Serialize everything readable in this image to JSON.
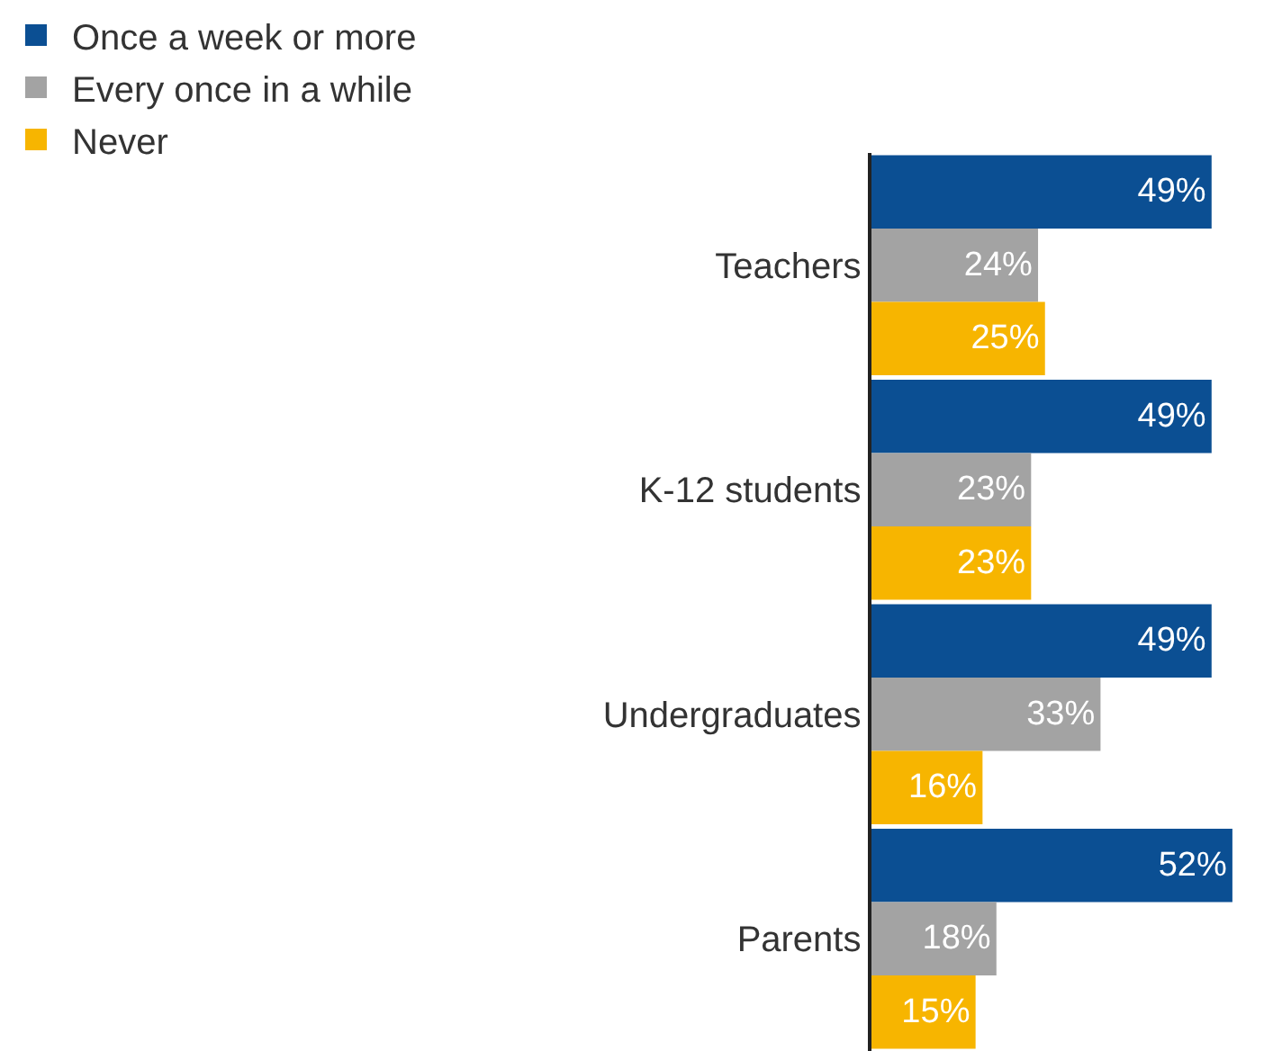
{
  "chart_data": {
    "type": "bar",
    "orientation": "horizontal",
    "categories": [
      "Teachers",
      "K-12 students",
      "Undergraduates",
      "Parents"
    ],
    "series": [
      {
        "name": "Once a week or more",
        "color": "#0b4f93",
        "values": [
          49,
          49,
          49,
          52
        ],
        "value_labels": [
          "49%",
          "49%",
          "49%",
          "52%"
        ]
      },
      {
        "name": "Every once in a while",
        "color": "#a3a3a3",
        "values": [
          24,
          23,
          33,
          18
        ],
        "value_labels": [
          "24%",
          "23%",
          "33%",
          "18%"
        ]
      },
      {
        "name": "Never",
        "color": "#f7b500",
        "values": [
          25,
          23,
          16,
          15
        ],
        "value_labels": [
          "25%",
          "23%",
          "16%",
          "15%"
        ]
      }
    ],
    "legend": "top left",
    "tick_labels": "y"
  }
}
